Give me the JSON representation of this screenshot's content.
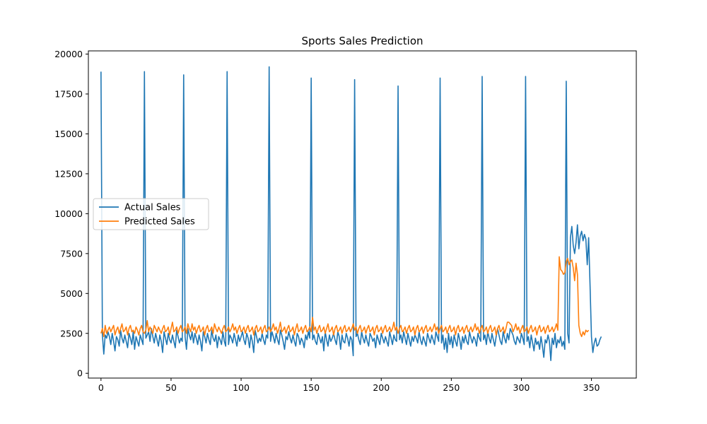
{
  "chart_data": {
    "type": "line",
    "title": "Sports Sales Prediction",
    "xlabel": "",
    "ylabel": "",
    "xlim": [
      -9,
      382
    ],
    "ylim": [
      -300,
      20200
    ],
    "x_ticks": [
      0,
      50,
      100,
      150,
      200,
      250,
      300,
      350
    ],
    "y_ticks": [
      0,
      2500,
      5000,
      7500,
      10000,
      12500,
      15000,
      17500,
      20000
    ],
    "x_tick_labels": [
      "0",
      "50",
      "100",
      "150",
      "200",
      "250",
      "300",
      "350"
    ],
    "y_tick_labels": [
      "0",
      "2500",
      "5000",
      "7500",
      "10000",
      "12500",
      "15000",
      "17500",
      "20000"
    ],
    "grid": false,
    "legend_position": "center-left",
    "x_start": 0,
    "series": [
      {
        "name": "Actual Sales",
        "color": "#1f77b4",
        "values": [
          18900,
          2400,
          1200,
          2400,
          2200,
          2600,
          2300,
          1800,
          2500,
          2000,
          1400,
          2300,
          2100,
          1700,
          2700,
          2200,
          1900,
          2400,
          2000,
          1600,
          2500,
          2200,
          1800,
          2600,
          1500,
          2300,
          2000,
          1700,
          2400,
          2100,
          1800,
          18900,
          2200,
          2400,
          2600,
          2000,
          2800,
          2300,
          1900,
          2500,
          2100,
          1700,
          2400,
          2000,
          1300,
          2600,
          2200,
          1800,
          2500,
          2100,
          1900,
          2400,
          2000,
          1600,
          2700,
          2300,
          1900,
          2200,
          2000,
          18700,
          2300,
          1500,
          2800,
          2400,
          2100,
          2600,
          1900,
          2500,
          2200,
          1800,
          2400,
          2000,
          1400,
          2600,
          2300,
          1900,
          2500,
          2100,
          1800,
          2700,
          2200,
          2000,
          2400,
          1600,
          2300,
          2100,
          1800,
          2600,
          2000,
          1700,
          18900,
          1800,
          2400,
          2200,
          1900,
          2500,
          2100,
          1700,
          2400,
          2000,
          2300,
          2600,
          2100,
          1800,
          2500,
          2200,
          1600,
          2400,
          2000,
          1300,
          2700,
          2300,
          1900,
          2200,
          2000,
          2500,
          2100,
          1800,
          2400,
          2200,
          19200,
          2000,
          2600,
          2300,
          1900,
          2500,
          2100,
          1800,
          2700,
          2400,
          2000,
          1500,
          2300,
          2100,
          2600,
          2200,
          1900,
          2400,
          2000,
          1700,
          2500,
          2300,
          1800,
          2200,
          2000,
          1600,
          2400,
          2100,
          2600,
          2200,
          18500,
          2100,
          2400,
          2000,
          1800,
          2500,
          2200,
          1900,
          2300,
          1400,
          2600,
          2100,
          1700,
          2400,
          2000,
          2200,
          2500,
          2100,
          1800,
          2600,
          2300,
          1500,
          2400,
          2000,
          1900,
          2500,
          2200,
          1700,
          2300,
          2100,
          1100,
          18400,
          2300,
          2500,
          2100,
          1800,
          2600,
          2200,
          1900,
          2400,
          2000,
          1700,
          2500,
          2300,
          2000,
          2200,
          1600,
          2400,
          2100,
          1800,
          2500,
          2200,
          1900,
          2300,
          2000,
          1700,
          2600,
          2200,
          1800,
          2400,
          2100,
          2000,
          18000,
          2100,
          2400,
          1900,
          2600,
          2200,
          1800,
          2500,
          2100,
          1700,
          2300,
          2000,
          2400,
          2200,
          1900,
          2600,
          2100,
          1800,
          2300,
          2000,
          1700,
          2500,
          2200,
          1900,
          2400,
          2100,
          1800,
          2600,
          2300,
          2000,
          18500,
          1900,
          2400,
          1500,
          2200,
          1300,
          2500,
          1800,
          2300,
          1600,
          2400,
          2000,
          1700,
          2500,
          2100,
          1500,
          2300,
          1900,
          2400,
          2000,
          1800,
          2600,
          2200,
          1900,
          2300,
          2100,
          1700,
          2500,
          2200,
          2000,
          18600,
          2100,
          2400,
          1800,
          2600,
          2200,
          1900,
          2500,
          2100,
          1700,
          2300,
          2800,
          2400,
          2000,
          1800,
          2600,
          2200,
          1900,
          2500,
          2100,
          2800,
          2600,
          2400,
          2000,
          1800,
          2300,
          2100,
          1900,
          2500,
          2200,
          1800,
          18600,
          2000,
          2300,
          1600,
          2400,
          1900,
          1400,
          2200,
          1800,
          2000,
          1500,
          2300,
          1700,
          1000,
          2100,
          1900,
          2400,
          2000,
          800,
          2200,
          1800,
          2500,
          1600,
          2100,
          1900,
          2300,
          1700,
          2000,
          1500,
          18300,
          2500,
          1900,
          8500,
          9200,
          8000,
          7500,
          8200,
          9300,
          7800,
          8600,
          8900,
          8300,
          8700,
          8400,
          6800,
          8500,
          5500,
          2300,
          1300,
          1900,
          2200,
          1700,
          1800,
          2100,
          2300
        ]
      },
      {
        "name": "Predicted Sales",
        "color": "#ff7f0e",
        "values": [
          2500,
          2800,
          2300,
          3000,
          2500,
          2700,
          2900,
          2600,
          2800,
          3000,
          2400,
          2700,
          2900,
          2500,
          2800,
          3100,
          2600,
          2700,
          2900,
          2400,
          2800,
          3000,
          2600,
          2700,
          2500,
          2900,
          2700,
          2400,
          2800,
          3000,
          2600,
          2500,
          2700,
          3300,
          2600,
          2900,
          2700,
          2500,
          3000,
          2800,
          2600,
          2900,
          2700,
          2500,
          2800,
          3000,
          2600,
          2700,
          2900,
          2400,
          2800,
          3200,
          2600,
          2700,
          2900,
          2500,
          2800,
          3000,
          2600,
          2700,
          2900,
          2500,
          3100,
          2800,
          2600,
          3100,
          2700,
          2900,
          2500,
          2800,
          3000,
          2600,
          2700,
          2900,
          2400,
          2800,
          3000,
          2600,
          2700,
          2900,
          2500,
          3100,
          2800,
          2600,
          2900,
          2700,
          2500,
          2800,
          3000,
          2600,
          2700,
          2900,
          2600,
          2800,
          3100,
          2700,
          2900,
          2500,
          2800,
          3000,
          2600,
          2700,
          2900,
          2500,
          2800,
          3000,
          2600,
          2700,
          2900,
          2400,
          2800,
          3000,
          2600,
          2700,
          2900,
          2500,
          2800,
          3000,
          2600,
          2700,
          2900,
          2600,
          2800,
          3100,
          2700,
          2900,
          2500,
          2800,
          3200,
          2600,
          2700,
          2900,
          2500,
          2800,
          3000,
          2600,
          2700,
          2900,
          2400,
          2800,
          3100,
          2600,
          2700,
          2900,
          2500,
          2800,
          3000,
          2600,
          2700,
          2900,
          2600,
          3500,
          2700,
          2900,
          2500,
          2800,
          3000,
          2600,
          2700,
          2900,
          2500,
          2800,
          3100,
          2600,
          2700,
          2900,
          2400,
          2800,
          3000,
          2600,
          2700,
          2900,
          2500,
          2800,
          3000,
          2600,
          2700,
          2900,
          2600,
          2800,
          3100,
          2700,
          2900,
          2500,
          2800,
          3000,
          2600,
          2700,
          2900,
          2500,
          2800,
          3000,
          2600,
          2700,
          2900,
          2400,
          2800,
          3000,
          2600,
          2700,
          2900,
          2500,
          2800,
          3000,
          2600,
          2700,
          2900,
          2600,
          2800,
          3200,
          2700,
          2900,
          2500,
          2800,
          3000,
          2600,
          2700,
          2900,
          2500,
          2800,
          3000,
          2600,
          2700,
          2900,
          2400,
          2800,
          3000,
          2600,
          2700,
          2900,
          2500,
          2800,
          3000,
          2600,
          2700,
          2900,
          2600,
          2800,
          3100,
          2700,
          2900,
          2500,
          2800,
          3000,
          2600,
          2700,
          2900,
          2500,
          2800,
          3000,
          2600,
          2700,
          2900,
          2400,
          2800,
          3000,
          2600,
          2700,
          2900,
          2500,
          2800,
          3000,
          2600,
          2700,
          2900,
          2600,
          2800,
          3100,
          2700,
          2900,
          2500,
          2800,
          3000,
          2600,
          2700,
          2900,
          2500,
          2800,
          3000,
          2600,
          2700,
          2900,
          2400,
          2800,
          3000,
          2600,
          2700,
          2900,
          2500,
          2800,
          3200,
          3200,
          3100,
          3000,
          2600,
          2800,
          3100,
          2700,
          2900,
          2500,
          2800,
          3000,
          2600,
          2700,
          2900,
          2500,
          2800,
          3000,
          2600,
          2700,
          2900,
          2400,
          2800,
          3000,
          2600,
          2700,
          2900,
          2500,
          2800,
          3000,
          2600,
          2700,
          2900,
          2600,
          2800,
          3100,
          2700,
          7300,
          6500,
          6400,
          6200,
          6300,
          7000,
          7200,
          6800,
          7000,
          7100,
          6600,
          5800,
          6900,
          6200,
          3000,
          2500,
          2300,
          2600,
          2400,
          2700,
          2600,
          2700
        ]
      }
    ]
  }
}
